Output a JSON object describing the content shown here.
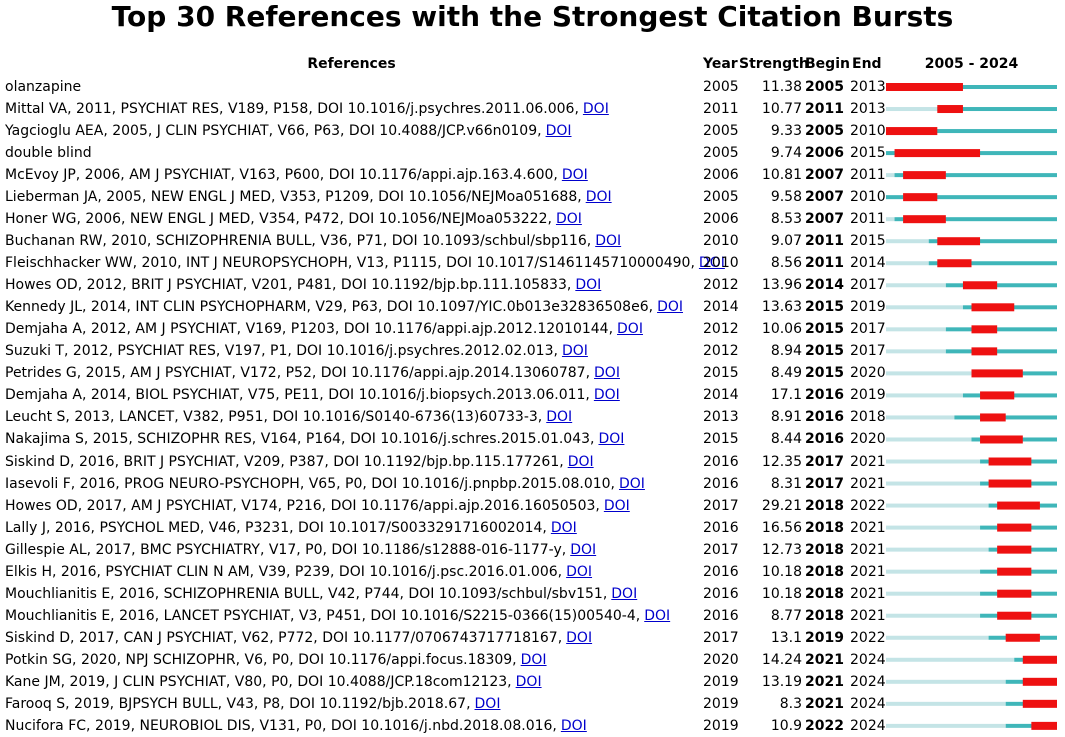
{
  "title": "Top 30 References with the Strongest Citation Bursts",
  "header": {
    "references": "References",
    "year": "Year",
    "strength": "Strength",
    "begin": "Begin",
    "end": "End",
    "timeline": "2005 - 2024"
  },
  "xlim": [
    2005,
    2024
  ],
  "colors": {
    "before": "#c4e4e6",
    "after": "#3fb6b9",
    "burst": "#ee1111"
  },
  "rows": [
    {
      "reference": "olanzapine",
      "year": 2005,
      "strength": 11.38,
      "begin": 2005,
      "end": 2013
    },
    {
      "reference": "Mittal VA, 2011, PSYCHIAT RES, V189, P158, DOI 10.1016/j.psychres.2011.06.006,",
      "link": "DOI",
      "year": 2011,
      "strength": 10.77,
      "begin": 2011,
      "end": 2013
    },
    {
      "reference": "Yagcioglu AEA, 2005, J CLIN PSYCHIAT, V66, P63, DOI 10.4088/JCP.v66n0109,",
      "link": "DOI",
      "year": 2005,
      "strength": 9.33,
      "begin": 2005,
      "end": 2010
    },
    {
      "reference": "double blind",
      "year": 2005,
      "strength": 9.74,
      "begin": 2006,
      "end": 2015
    },
    {
      "reference": "McEvoy JP, 2006, AM J PSYCHIAT, V163, P600, DOI 10.1176/appi.ajp.163.4.600,",
      "link": "DOI",
      "year": 2006,
      "strength": 10.81,
      "begin": 2007,
      "end": 2011
    },
    {
      "reference": "Lieberman JA, 2005, NEW ENGL J MED, V353, P1209, DOI 10.1056/NEJMoa051688,",
      "link": "DOI",
      "year": 2005,
      "strength": 9.58,
      "begin": 2007,
      "end": 2010
    },
    {
      "reference": "Honer WG, 2006, NEW ENGL J MED, V354, P472, DOI 10.1056/NEJMoa053222,",
      "link": "DOI",
      "year": 2006,
      "strength": 8.53,
      "begin": 2007,
      "end": 2011
    },
    {
      "reference": "Buchanan RW, 2010, SCHIZOPHRENIA BULL, V36, P71, DOI 10.1093/schbul/sbp116,",
      "link": "DOI",
      "year": 2010,
      "strength": 9.07,
      "begin": 2011,
      "end": 2015
    },
    {
      "reference": "Fleischhacker WW, 2010, INT J NEUROPSYCHOPH, V13, P1115, DOI 10.1017/S1461145710000490,",
      "link": "DOI",
      "year": 2010,
      "strength": 8.56,
      "begin": 2011,
      "end": 2014
    },
    {
      "reference": "Howes OD, 2012, BRIT J PSYCHIAT, V201, P481, DOI 10.1192/bjp.bp.111.105833,",
      "link": "DOI",
      "year": 2012,
      "strength": 13.96,
      "begin": 2014,
      "end": 2017
    },
    {
      "reference": "Kennedy JL, 2014, INT CLIN PSYCHOPHARM, V29, P63, DOI 10.1097/YIC.0b013e32836508e6,",
      "link": "DOI",
      "year": 2014,
      "strength": 13.63,
      "begin": 2015,
      "end": 2019
    },
    {
      "reference": "Demjaha A, 2012, AM J PSYCHIAT, V169, P1203, DOI 10.1176/appi.ajp.2012.12010144,",
      "link": "DOI",
      "year": 2012,
      "strength": 10.06,
      "begin": 2015,
      "end": 2017
    },
    {
      "reference": "Suzuki T, 2012, PSYCHIAT RES, V197, P1, DOI 10.1016/j.psychres.2012.02.013,",
      "link": "DOI",
      "year": 2012,
      "strength": 8.94,
      "begin": 2015,
      "end": 2017
    },
    {
      "reference": "Petrides G, 2015, AM J PSYCHIAT, V172, P52, DOI 10.1176/appi.ajp.2014.13060787,",
      "link": "DOI",
      "year": 2015,
      "strength": 8.49,
      "begin": 2015,
      "end": 2020
    },
    {
      "reference": "Demjaha A, 2014, BIOL PSYCHIAT, V75, PE11, DOI 10.1016/j.biopsych.2013.06.011,",
      "link": "DOI",
      "year": 2014,
      "strength": 17.1,
      "begin": 2016,
      "end": 2019
    },
    {
      "reference": "Leucht S, 2013, LANCET, V382, P951, DOI 10.1016/S0140-6736(13)60733-3,",
      "link": "DOI",
      "year": 2013,
      "strength": 8.91,
      "begin": 2016,
      "end": 2018
    },
    {
      "reference": "Nakajima S, 2015, SCHIZOPHR RES, V164, P164, DOI 10.1016/j.schres.2015.01.043,",
      "link": "DOI",
      "year": 2015,
      "strength": 8.44,
      "begin": 2016,
      "end": 2020
    },
    {
      "reference": "Siskind D, 2016, BRIT J PSYCHIAT, V209, P387, DOI 10.1192/bjp.bp.115.177261,",
      "link": "DOI",
      "year": 2016,
      "strength": 12.35,
      "begin": 2017,
      "end": 2021
    },
    {
      "reference": "Iasevoli F, 2016, PROG NEURO-PSYCHOPH, V65, P0, DOI 10.1016/j.pnpbp.2015.08.010,",
      "link": "DOI",
      "year": 2016,
      "strength": 8.31,
      "begin": 2017,
      "end": 2021
    },
    {
      "reference": "Howes OD, 2017, AM J PSYCHIAT, V174, P216, DOI 10.1176/appi.ajp.2016.16050503,",
      "link": "DOI",
      "year": 2017,
      "strength": 29.21,
      "begin": 2018,
      "end": 2022
    },
    {
      "reference": "Lally J, 2016, PSYCHOL MED, V46, P3231, DOI 10.1017/S0033291716002014,",
      "link": "DOI",
      "year": 2016,
      "strength": 16.56,
      "begin": 2018,
      "end": 2021
    },
    {
      "reference": "Gillespie AL, 2017, BMC PSYCHIATRY, V17, P0, DOI 10.1186/s12888-016-1177-y,",
      "link": "DOI",
      "year": 2017,
      "strength": 12.73,
      "begin": 2018,
      "end": 2021
    },
    {
      "reference": "Elkis H, 2016, PSYCHIAT CLIN N AM, V39, P239, DOI 10.1016/j.psc.2016.01.006,",
      "link": "DOI",
      "year": 2016,
      "strength": 10.18,
      "begin": 2018,
      "end": 2021
    },
    {
      "reference": "Mouchlianitis E, 2016, SCHIZOPHRENIA BULL, V42, P744, DOI 10.1093/schbul/sbv151,",
      "link": "DOI",
      "year": 2016,
      "strength": 10.18,
      "begin": 2018,
      "end": 2021
    },
    {
      "reference": "Mouchlianitis E, 2016, LANCET PSYCHIAT, V3, P451, DOI 10.1016/S2215-0366(15)00540-4,",
      "link": "DOI",
      "year": 2016,
      "strength": 8.77,
      "begin": 2018,
      "end": 2021
    },
    {
      "reference": "Siskind D, 2017, CAN J PSYCHIAT, V62, P772, DOI 10.1177/0706743717718167,",
      "link": "DOI",
      "year": 2017,
      "strength": 13.1,
      "begin": 2019,
      "end": 2022
    },
    {
      "reference": "Potkin SG, 2020, NPJ SCHIZOPHR, V6, P0, DOI 10.1176/appi.focus.18309,",
      "link": "DOI",
      "year": 2020,
      "strength": 14.24,
      "begin": 2021,
      "end": 2024
    },
    {
      "reference": "Kane JM, 2019, J CLIN PSYCHIAT, V80, P0, DOI 10.4088/JCP.18com12123,",
      "link": "DOI",
      "year": 2019,
      "strength": 13.19,
      "begin": 2021,
      "end": 2024
    },
    {
      "reference": "Farooq S, 2019, BJPSYCH BULL, V43, P8, DOI 10.1192/bjb.2018.67,",
      "link": "DOI",
      "year": 2019,
      "strength": 8.3,
      "begin": 2021,
      "end": 2024
    },
    {
      "reference": "Nucifora FC, 2019, NEUROBIOL DIS, V131, P0, DOI 10.1016/j.nbd.2018.08.016,",
      "link": "DOI",
      "year": 2019,
      "strength": 10.9,
      "begin": 2022,
      "end": 2024
    }
  ]
}
